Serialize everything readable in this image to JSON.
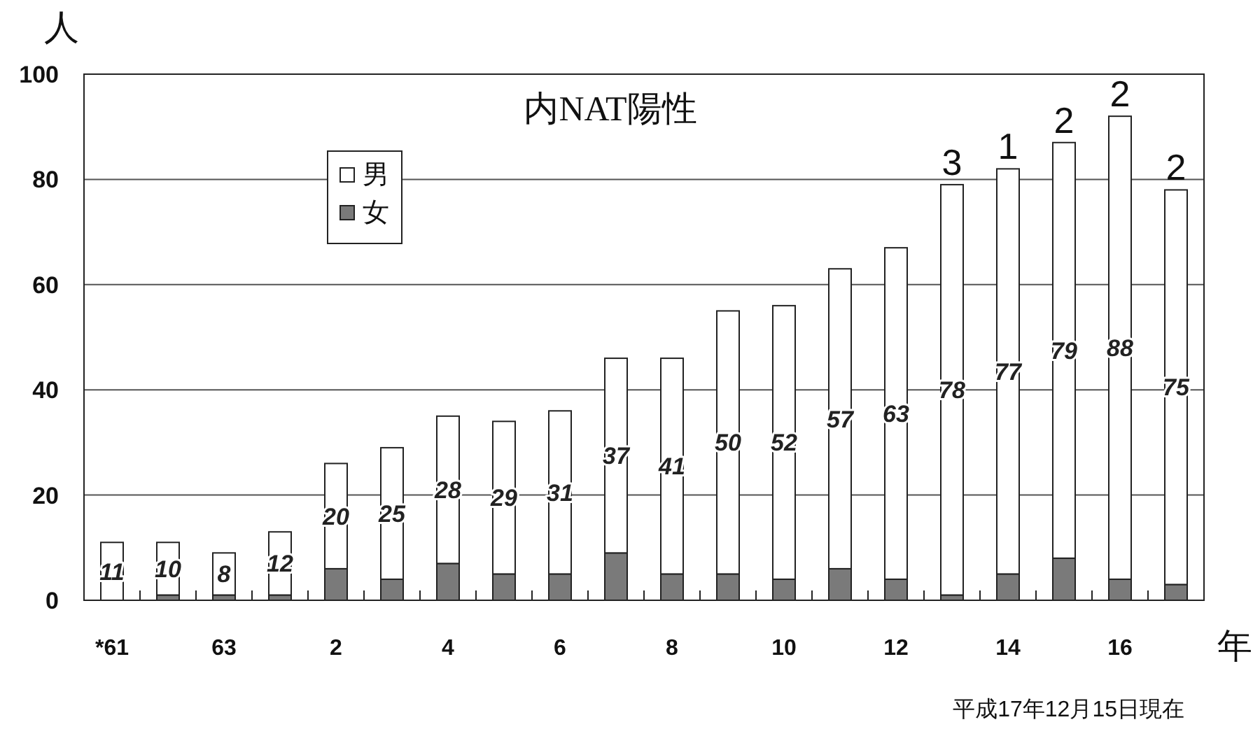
{
  "chart_data": {
    "type": "bar",
    "stacked": true,
    "title": "内NAT陽性",
    "ylabel": "人",
    "xlabel": "年",
    "categories": [
      "*61",
      null,
      "63",
      null,
      "2",
      null,
      "4",
      null,
      "6",
      null,
      "8",
      null,
      "10",
      null,
      "12",
      null,
      "14",
      null,
      "16",
      null
    ],
    "series": [
      {
        "name": "女",
        "color": "#7a7a7a",
        "values": [
          0,
          1,
          1,
          1,
          6,
          4,
          7,
          5,
          5,
          9,
          5,
          5,
          4,
          6,
          4,
          1,
          5,
          8,
          4,
          3
        ]
      },
      {
        "name": "男",
        "color": "#ffffff",
        "values": [
          11,
          10,
          8,
          12,
          20,
          25,
          28,
          29,
          31,
          37,
          41,
          50,
          52,
          57,
          63,
          78,
          77,
          79,
          88,
          75
        ],
        "value_labels": [
          "11",
          "10",
          "8",
          "12",
          "20",
          "25",
          "28",
          "29",
          "31",
          "37",
          "41",
          "50",
          "52",
          "57",
          "63",
          "78",
          "77",
          "79",
          "88",
          "75"
        ]
      }
    ],
    "ylim": [
      0,
      100
    ],
    "yticks": [
      0,
      20,
      40,
      60,
      80,
      100
    ],
    "grid": "y",
    "legend": "top left",
    "annotations": [
      {
        "text": "3",
        "y": 79
      },
      {
        "text": "1",
        "y": 82
      },
      {
        "text": "2",
        "y": 87
      },
      {
        "text": "2",
        "y": 92
      },
      {
        "text": "2",
        "y": 78
      },
      "平成17年12月15日現在"
    ]
  }
}
